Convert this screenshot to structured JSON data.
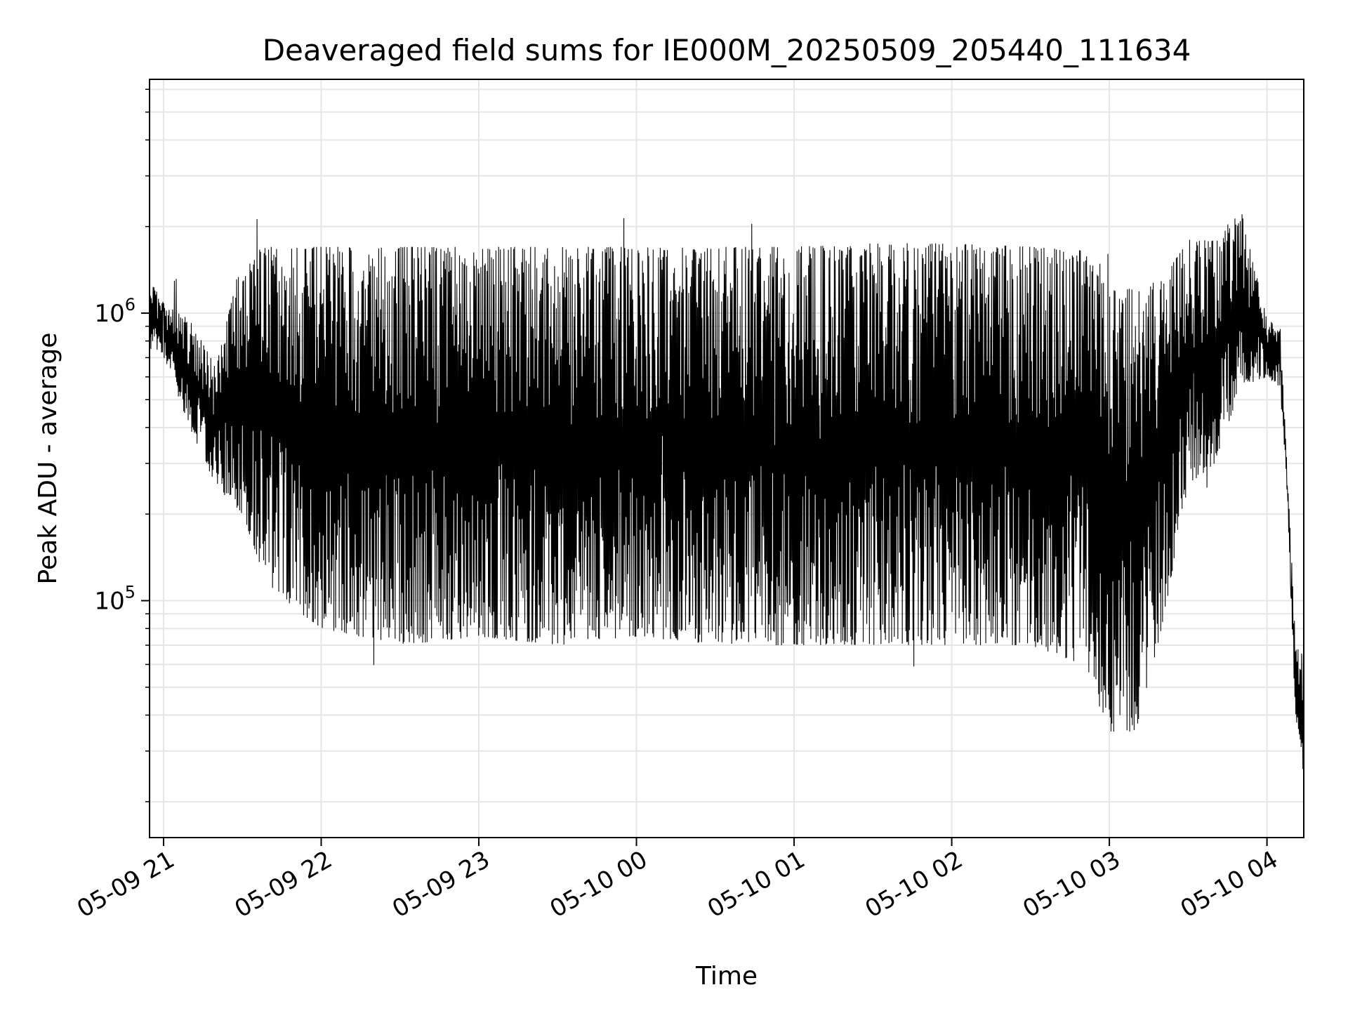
{
  "chart_data": {
    "type": "line",
    "title": "Deaveraged field sums for IE000M_20250509_205440_111634",
    "xlabel": "Time",
    "ylabel": "Peak ADU - average",
    "yscale": "log",
    "ylim": [
      15000,
      6500000
    ],
    "xlim": [
      "2025-05-09T20:54:40",
      "2025-05-10T04:14:00"
    ],
    "x_ticks": [
      {
        "t": "2025-05-09T21:00",
        "label": "05-09 21"
      },
      {
        "t": "2025-05-09T22:00",
        "label": "05-09 22"
      },
      {
        "t": "2025-05-09T23:00",
        "label": "05-09 23"
      },
      {
        "t": "2025-05-10T00:00",
        "label": "05-10 00"
      },
      {
        "t": "2025-05-10T01:00",
        "label": "05-10 01"
      },
      {
        "t": "2025-05-10T02:00",
        "label": "05-10 02"
      },
      {
        "t": "2025-05-10T03:00",
        "label": "05-10 03"
      },
      {
        "t": "2025-05-10T04:00",
        "label": "05-10 04"
      }
    ],
    "y_ticks": [
      {
        "value": 100000,
        "base": "10",
        "exp": "5"
      },
      {
        "value": 1000000,
        "base": "10",
        "exp": "6"
      }
    ],
    "grid": true,
    "legend": "none",
    "line_color": "#000000",
    "grid_color": "#e6e6e6",
    "envelope": {
      "x": [
        "2025-05-09T20:54:40",
        "2025-05-09T21:00",
        "2025-05-09T21:10",
        "2025-05-09T21:20",
        "2025-05-09T21:30",
        "2025-05-09T21:40",
        "2025-05-09T22:00",
        "2025-05-09T22:30",
        "2025-05-09T23:00",
        "2025-05-09T23:30",
        "2025-05-10T00:00",
        "2025-05-10T00:30",
        "2025-05-10T01:00",
        "2025-05-10T01:30",
        "2025-05-10T02:00",
        "2025-05-10T02:30",
        "2025-05-10T02:50",
        "2025-05-10T03:00",
        "2025-05-10T03:10",
        "2025-05-10T03:20",
        "2025-05-10T03:30",
        "2025-05-10T03:40",
        "2025-05-10T03:50",
        "2025-05-10T04:00",
        "2025-05-10T04:05",
        "2025-05-10T04:08",
        "2025-05-10T04:11",
        "2025-05-10T04:14"
      ],
      "high": [
        1300000,
        1100000,
        950000,
        650000,
        1600000,
        1700000,
        1700000,
        1700000,
        1700000,
        1700000,
        1700000,
        1700000,
        1700000,
        1750000,
        1750000,
        1700000,
        1650000,
        1200000,
        1250000,
        1300000,
        1800000,
        1800000,
        2300000,
        950000,
        900000,
        250000,
        70000,
        65000
      ],
      "low": [
        750000,
        700000,
        400000,
        250000,
        200000,
        110000,
        80000,
        70000,
        75000,
        70000,
        75000,
        70000,
        70000,
        70000,
        70000,
        70000,
        60000,
        35000,
        35000,
        80000,
        250000,
        300000,
        550000,
        600000,
        550000,
        200000,
        35000,
        25000
      ]
    }
  }
}
